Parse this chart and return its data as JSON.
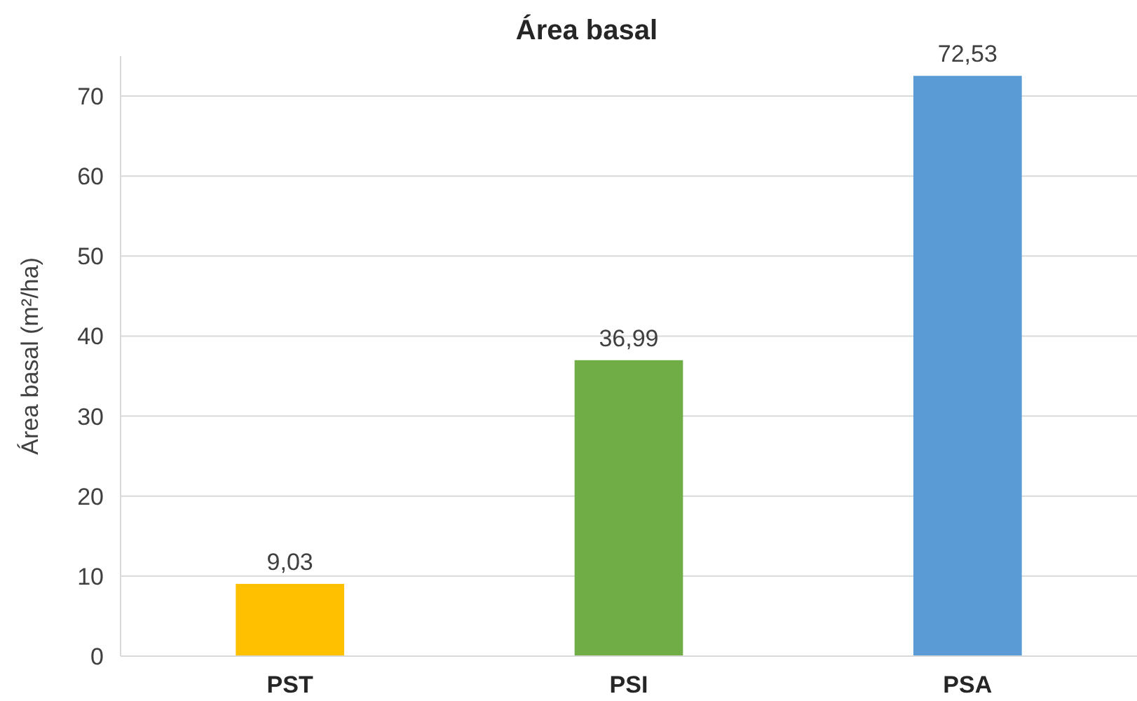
{
  "chart_data": {
    "type": "bar",
    "title": "Área basal",
    "ylabel": "Área basal (m²/ha)",
    "categories": [
      "PST",
      "PSI",
      "PSA"
    ],
    "values": [
      9.03,
      36.99,
      72.53
    ],
    "colors": [
      "#ffc000",
      "#70ad47",
      "#5b9bd5"
    ],
    "ylim": [
      0,
      75
    ],
    "yticks": [
      0,
      10,
      20,
      30,
      40,
      50,
      60,
      70
    ],
    "grid": "y",
    "value_labels": [
      "9,03",
      "36,99",
      "72,53"
    ]
  }
}
